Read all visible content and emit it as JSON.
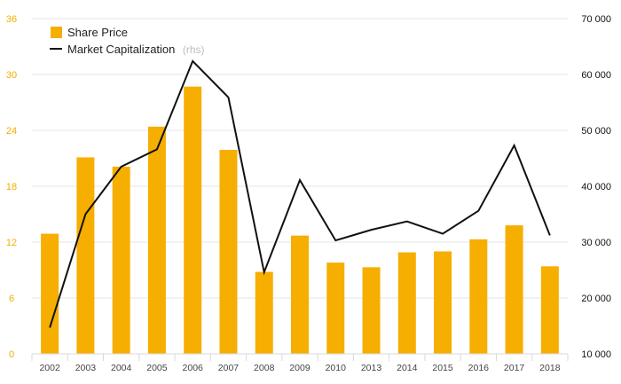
{
  "chart_data": {
    "type": "bar",
    "categories": [
      "2002",
      "2003",
      "2004",
      "2005",
      "2006",
      "2007",
      "2008",
      "2009",
      "2010",
      "2013",
      "2014",
      "2015",
      "2016",
      "2017",
      "2018"
    ],
    "series": [
      {
        "name": "Share Price",
        "type": "bar",
        "axis": "left",
        "color": "#f6ae00",
        "values": [
          12.9,
          21.1,
          20.1,
          24.4,
          28.7,
          21.9,
          8.8,
          12.7,
          9.8,
          9.3,
          10.9,
          11.0,
          12.3,
          13.8,
          9.4
        ]
      },
      {
        "name": "Market Capitalization",
        "type": "line",
        "axis": "right",
        "color": "#111111",
        "values": [
          14700,
          35000,
          43500,
          46600,
          62400,
          55900,
          24600,
          41100,
          30300,
          32200,
          33700,
          31500,
          35600,
          47300,
          31200
        ]
      }
    ],
    "legend": {
      "items": [
        "Share Price",
        "Market Capitalization"
      ],
      "note": "(rhs)",
      "placement": "top-left"
    },
    "y_left": {
      "ylim": [
        0,
        36
      ],
      "ticks": [
        "0",
        "6",
        "12",
        "18",
        "24",
        "30",
        "36"
      ],
      "color": "#f2ae00"
    },
    "y_right": {
      "ylim": [
        10000,
        70000
      ],
      "ticks": [
        "10 000",
        "20 000",
        "30 000",
        "40 000",
        "50 000",
        "60 000",
        "70 000"
      ]
    },
    "grid": true
  }
}
